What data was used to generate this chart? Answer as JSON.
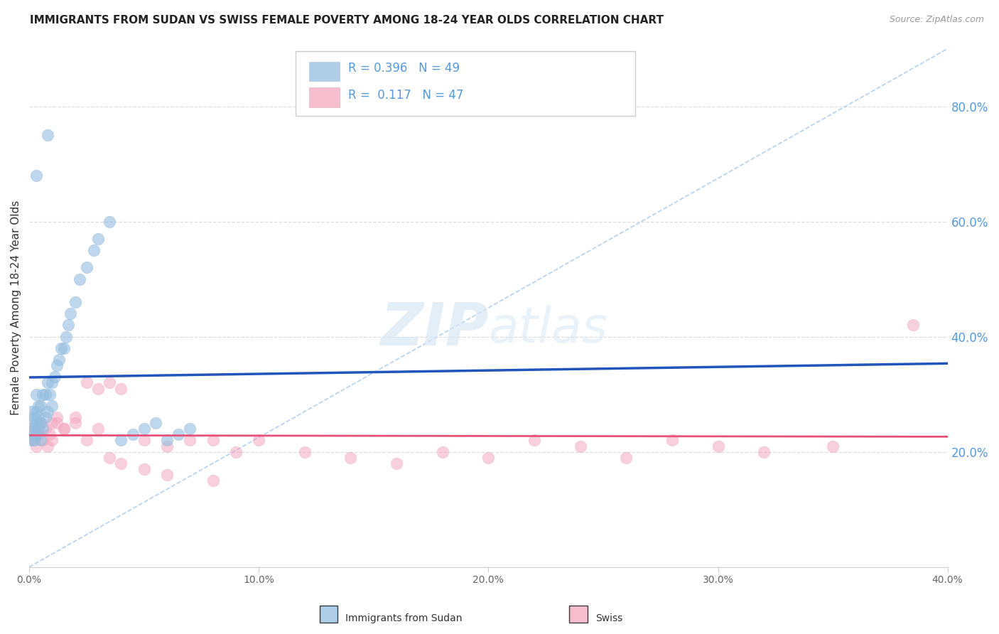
{
  "title": "IMMIGRANTS FROM SUDAN VS SWISS FEMALE POVERTY AMONG 18-24 YEAR OLDS CORRELATION CHART",
  "source": "Source: ZipAtlas.com",
  "ylabel": "Female Poverty Among 18-24 Year Olds",
  "xlim": [
    0.0,
    0.4
  ],
  "ylim": [
    0.0,
    0.9
  ],
  "right_ytick_vals": [
    0.2,
    0.4,
    0.6,
    0.8
  ],
  "right_yticklabels": [
    "20.0%",
    "40.0%",
    "60.0%",
    "80.0%"
  ],
  "xtick_vals": [
    0.0,
    0.1,
    0.2,
    0.3,
    0.4
  ],
  "xticklabels": [
    "0.0%",
    "10.0%",
    "20.0%",
    "30.0%",
    "40.0%"
  ],
  "legend_label1": "Immigrants from Sudan",
  "legend_label2": "Swiss",
  "R1": "0.396",
  "N1": "49",
  "R2": "0.117",
  "N2": "47",
  "blue_scatter": "#93BDE0",
  "pink_scatter": "#F4A8C0",
  "blue_line": "#2255BB",
  "pink_line": "#E8507A",
  "diag_line": "#AACCEE",
  "grid_color": "#DDDDDD",
  "title_color": "#222222",
  "source_color": "#999999",
  "right_tick_color": "#5599DD",
  "background": "#FFFFFF",
  "legend_text_color": "#5599DD",
  "watermark_zip": "ZIP",
  "watermark_atlas": "atlas",
  "sudan_x": [
    0.001,
    0.001,
    0.001,
    0.002,
    0.002,
    0.002,
    0.002,
    0.003,
    0.003,
    0.003,
    0.003,
    0.004,
    0.004,
    0.004,
    0.005,
    0.005,
    0.005,
    0.006,
    0.006,
    0.007,
    0.007,
    0.008,
    0.008,
    0.009,
    0.01,
    0.01,
    0.011,
    0.012,
    0.013,
    0.014,
    0.015,
    0.016,
    0.017,
    0.018,
    0.02,
    0.022,
    0.025,
    0.028,
    0.03,
    0.035,
    0.04,
    0.045,
    0.05,
    0.055,
    0.06,
    0.065,
    0.07,
    0.003,
    0.008
  ],
  "sudan_y": [
    0.22,
    0.25,
    0.27,
    0.23,
    0.24,
    0.26,
    0.22,
    0.25,
    0.23,
    0.27,
    0.3,
    0.24,
    0.26,
    0.28,
    0.22,
    0.25,
    0.28,
    0.24,
    0.3,
    0.26,
    0.3,
    0.27,
    0.32,
    0.3,
    0.28,
    0.32,
    0.33,
    0.35,
    0.36,
    0.38,
    0.38,
    0.4,
    0.42,
    0.44,
    0.46,
    0.5,
    0.52,
    0.55,
    0.57,
    0.6,
    0.22,
    0.23,
    0.24,
    0.25,
    0.22,
    0.23,
    0.24,
    0.68,
    0.75
  ],
  "swiss_x": [
    0.001,
    0.002,
    0.003,
    0.004,
    0.005,
    0.006,
    0.007,
    0.008,
    0.009,
    0.01,
    0.012,
    0.015,
    0.02,
    0.025,
    0.03,
    0.035,
    0.04,
    0.05,
    0.06,
    0.07,
    0.08,
    0.09,
    0.1,
    0.12,
    0.14,
    0.16,
    0.18,
    0.2,
    0.22,
    0.24,
    0.26,
    0.28,
    0.3,
    0.32,
    0.35,
    0.385,
    0.01,
    0.012,
    0.015,
    0.02,
    0.025,
    0.03,
    0.035,
    0.04,
    0.05,
    0.06,
    0.08
  ],
  "swiss_y": [
    0.24,
    0.22,
    0.21,
    0.23,
    0.25,
    0.22,
    0.24,
    0.21,
    0.23,
    0.22,
    0.25,
    0.24,
    0.26,
    0.22,
    0.24,
    0.32,
    0.31,
    0.22,
    0.21,
    0.22,
    0.22,
    0.2,
    0.22,
    0.2,
    0.19,
    0.18,
    0.2,
    0.19,
    0.22,
    0.21,
    0.19,
    0.22,
    0.21,
    0.2,
    0.21,
    0.42,
    0.25,
    0.26,
    0.24,
    0.25,
    0.32,
    0.31,
    0.19,
    0.18,
    0.17,
    0.16,
    0.15
  ]
}
